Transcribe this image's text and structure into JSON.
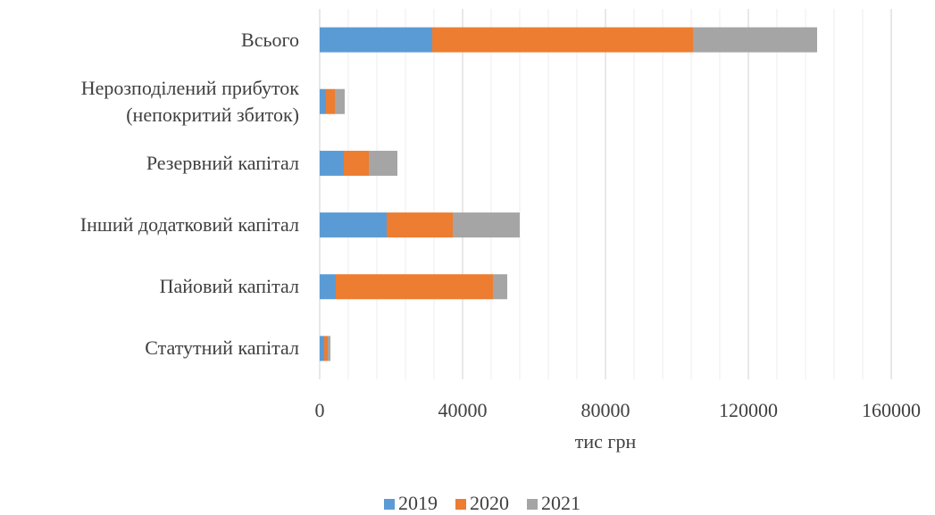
{
  "chart_data": {
    "type": "stacked_bar_horizontal",
    "categories": [
      "Всього",
      "Нерозподілений прибуток\n(непокритий збиток)",
      "Резервний капітал",
      "Інший додатковий капітал",
      "Пайовий капітал",
      "Статутний капітал"
    ],
    "series": [
      {
        "name": "2019",
        "color": "#5b9bd5",
        "values": [
          31500,
          1750,
          6750,
          18750,
          4500,
          1250
        ]
      },
      {
        "name": "2020",
        "color": "#ed7d31",
        "values": [
          73000,
          2500,
          7000,
          18500,
          44000,
          1000
        ]
      },
      {
        "name": "2021",
        "color": "#a5a5a5",
        "values": [
          34750,
          2750,
          8000,
          18750,
          4000,
          750
        ]
      }
    ],
    "xlabel": "тис грн",
    "xlim": [
      0,
      160000
    ],
    "xticks": [
      0,
      40000,
      80000,
      120000,
      160000
    ],
    "minor_grid_step": 8000,
    "grid": true,
    "legend": "bottom"
  }
}
